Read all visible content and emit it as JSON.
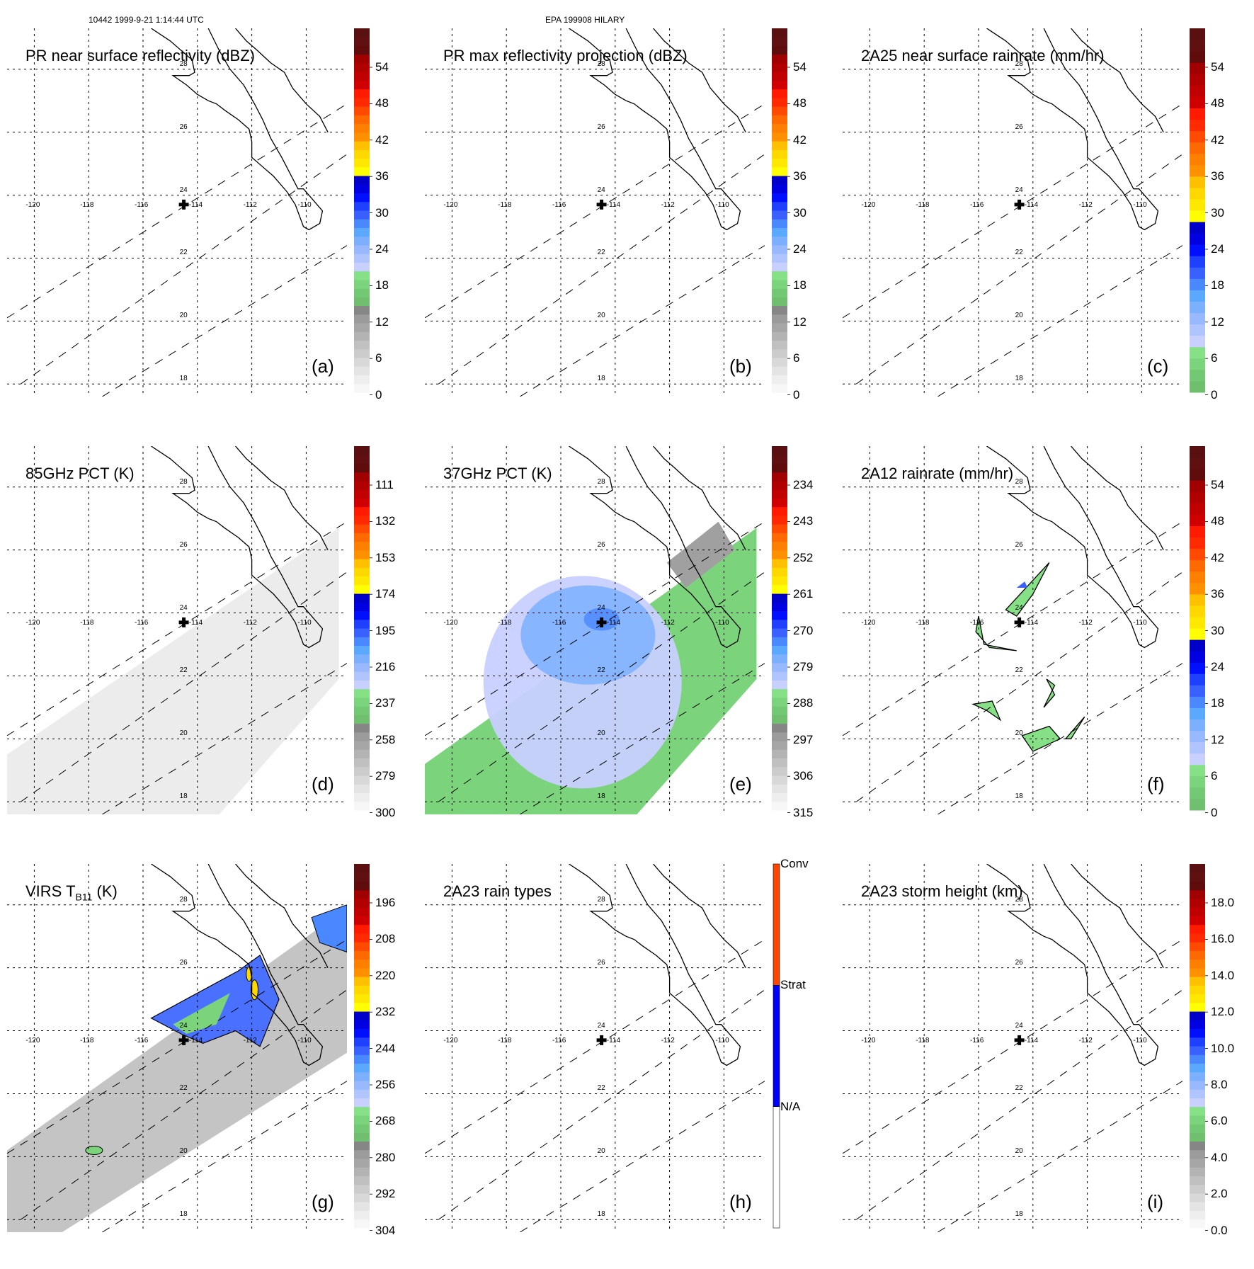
{
  "header": {
    "orbit_time": "10442 1999-9-21 1:14:44 UTC",
    "storm": "EPA 199908 HILARY"
  },
  "map": {
    "lon_labels": [
      "-120",
      "-118",
      "-116",
      "-114",
      "-112",
      "-110"
    ],
    "lat_labels": [
      "28",
      "26",
      "24",
      "22",
      "20",
      "18"
    ],
    "lon_range": [
      -121,
      -108.5
    ],
    "lat_range": [
      17.6,
      29.3
    ],
    "storm_center": {
      "lon": -114.5,
      "lat": 23.7
    }
  },
  "colors": {
    "ramp": [
      "#f7f7f7",
      "#eeeeee",
      "#e4e4e4",
      "#d8d8d8",
      "#cccccc",
      "#c0c0c0",
      "#b3b3b3",
      "#a6a6a6",
      "#9b9b9b",
      "#868686",
      "#6fbf6f",
      "#73c873",
      "#7bd47b",
      "#86e086",
      "#c8d0ff",
      "#b0c4ff",
      "#98b8ff",
      "#7cb0ff",
      "#5aa8ff",
      "#4a88ff",
      "#3a60ff",
      "#2040ff",
      "#0010ff",
      "#0000e0",
      "#0000c8",
      "#ffff00",
      "#ffe800",
      "#ffd800",
      "#ffc000",
      "#ff9000",
      "#ff8000",
      "#ff6a00",
      "#ff4a00",
      "#ff2a00",
      "#ff1a00",
      "#d00000",
      "#c00000",
      "#b00000",
      "#a00000",
      "#600c0c",
      "#601010",
      "#5a1010"
    ],
    "rain_types": [
      "#ffffff",
      "#0000ff",
      "#ff4500"
    ]
  },
  "chart_data": [
    {
      "type": "heatmap",
      "panel": "a",
      "title": "PR near surface reflectivity (dBZ)",
      "letter": "(a)",
      "colorbar_ticks": [
        "54",
        "48",
        "42",
        "36",
        "30",
        "24",
        "18",
        "12",
        "6",
        "0"
      ],
      "colorbar_range": [
        0,
        60
      ],
      "swath": false,
      "description": "Nearly empty; no significant echoes"
    },
    {
      "type": "heatmap",
      "panel": "b",
      "title": "PR max reflectivity projection (dBZ)",
      "letter": "(b)",
      "colorbar_ticks": [
        "54",
        "48",
        "42",
        "36",
        "30",
        "24",
        "18",
        "12",
        "6",
        "0"
      ],
      "colorbar_range": [
        0,
        60
      ],
      "swath": false,
      "description": "Nearly empty; no significant echoes"
    },
    {
      "type": "heatmap",
      "panel": "c",
      "title": "2A25 near surface rainrate (mm/hr)",
      "letter": "(c)",
      "colorbar_ticks": [
        "54",
        "48",
        "42",
        "36",
        "30",
        "24",
        "18",
        "12",
        "6",
        "0"
      ],
      "colorbar_range": [
        0,
        60
      ],
      "colorbar_style": "rain",
      "swath": false,
      "description": "Nearly empty; no significant rain"
    },
    {
      "type": "heatmap",
      "panel": "d",
      "title": "85GHz PCT (K)",
      "letter": "(d)",
      "colorbar_ticks": [
        "111",
        "132",
        "153",
        "174",
        "195",
        "216",
        "237",
        "258",
        "279",
        "300"
      ],
      "colorbar_range": [
        300,
        90
      ],
      "swath": true,
      "fill": "light-gray",
      "description": "Uniform warm PCT (~280-300 K) across swath"
    },
    {
      "type": "heatmap",
      "panel": "e",
      "title": "37GHz PCT (K)",
      "letter": "(e)",
      "colorbar_ticks": [
        "234",
        "243",
        "252",
        "261",
        "270",
        "279",
        "288",
        "297",
        "306",
        "315"
      ],
      "colorbar_range": [
        315,
        225
      ],
      "swath": true,
      "fill": "blue-green",
      "description": "Light blue (~275-285 K) ocean core near center, green (~288-295 K) edges, gray over land"
    },
    {
      "type": "heatmap",
      "panel": "f",
      "title": "2A12 rainrate (mm/hr)",
      "letter": "(f)",
      "colorbar_ticks": [
        "54",
        "48",
        "42",
        "36",
        "30",
        "24",
        "18",
        "12",
        "6",
        "0"
      ],
      "colorbar_range": [
        0,
        60
      ],
      "colorbar_style": "rain",
      "swath": false,
      "description": "Scattered light rain patches (0-6 mm/hr) west and south of center"
    },
    {
      "type": "heatmap",
      "panel": "g",
      "title": "VIRS T",
      "title_sub": "B11",
      "title_suffix": " (K)",
      "letter": "(g)",
      "colorbar_ticks": [
        "196",
        "208",
        "220",
        "232",
        "244",
        "256",
        "268",
        "280",
        "292",
        "304"
      ],
      "colorbar_range": [
        304,
        184
      ],
      "swath": true,
      "fill": "gray",
      "description": "Cold cloud tops (blue ~235-255 K, yellow ~225-232 K) NE of center near Baja coast"
    },
    {
      "type": "heatmap",
      "panel": "h",
      "title": "2A23 rain types",
      "letter": "(h)",
      "colorbar_categories": [
        "Conv",
        "Strat",
        "N/A"
      ],
      "swath": false,
      "description": "No rain types detected"
    },
    {
      "type": "heatmap",
      "panel": "i",
      "title": "2A23 storm height (km)",
      "letter": "(i)",
      "colorbar_ticks": [
        "18.0",
        "16.0",
        "14.0",
        "12.0",
        "10.0",
        "8.0",
        "6.0",
        "4.0",
        "2.0",
        "0.0"
      ],
      "colorbar_range": [
        0,
        20
      ],
      "swath": false,
      "description": "No storm heights detected"
    }
  ]
}
